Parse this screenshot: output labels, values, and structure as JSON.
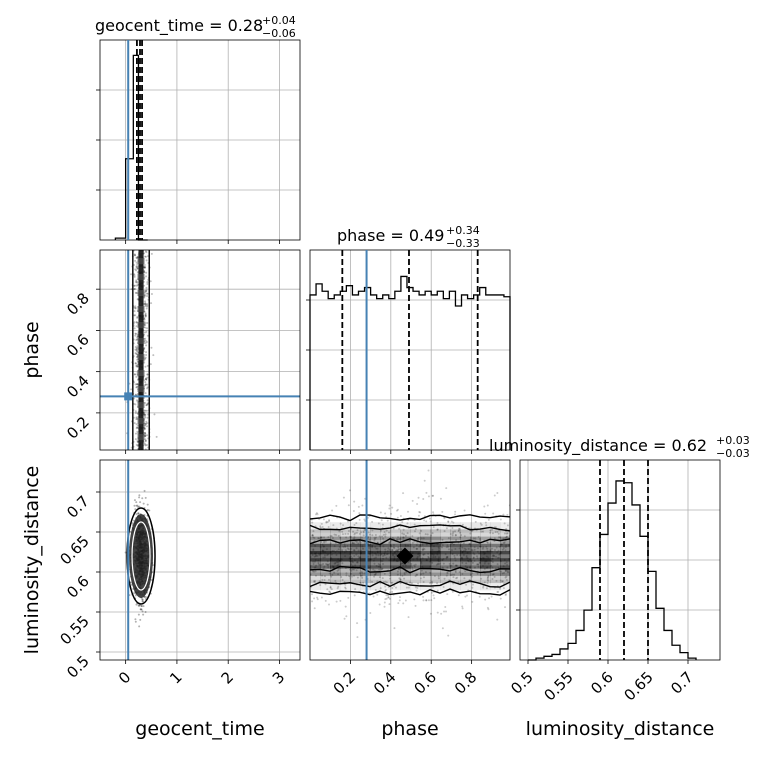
{
  "chart_data": {
    "type": "corner",
    "parameters": [
      "geocent_time",
      "phase",
      "luminosity_distance"
    ],
    "truth": {
      "geocent_time": 0.05,
      "phase": 0.28,
      "luminosity_distance": null
    },
    "truth_color": "#4682b4",
    "grid": true,
    "panels": [
      {
        "id": "geocent_time_hist",
        "kind": "histogram",
        "row": 0,
        "col": 0,
        "title": {
          "label": "geocent_time",
          "value": "0.28",
          "upper": "+0.04",
          "lower": "−0.06"
        },
        "xlim": [
          -0.5,
          3.4
        ],
        "bin_edges": [
          -0.2,
          0.0,
          0.15,
          0.25,
          0.43
        ],
        "counts": [
          0.01,
          0.44,
          1.0,
          0.0
        ],
        "quantiles": [
          0.22,
          0.28,
          0.32
        ],
        "xlabel": "",
        "xticks": [
          0,
          1,
          2,
          3
        ]
      },
      {
        "id": "phase_vs_geocent",
        "kind": "scatter2d",
        "row": 1,
        "col": 0,
        "xlim": [
          -0.5,
          3.4
        ],
        "ylim": [
          0.02,
          0.99
        ],
        "xticks": [
          0,
          1,
          2,
          3
        ],
        "yticks": [
          0.2,
          0.4,
          0.6,
          0.8
        ],
        "ylabel": "phase",
        "x_center": 0.3,
        "x_spread": 0.08
      },
      {
        "id": "phase_hist",
        "kind": "histogram",
        "row": 1,
        "col": 1,
        "title": {
          "label": "phase",
          "value": "0.49",
          "upper": "+0.34",
          "lower": "−0.33"
        },
        "xlim": [
          0.0,
          0.99
        ],
        "counts": [
          0.84,
          0.9,
          0.86,
          0.82,
          0.84,
          0.86,
          0.89,
          0.84,
          0.86,
          0.88,
          0.84,
          0.82,
          0.84,
          0.82,
          0.86,
          0.94,
          0.88,
          0.86,
          0.84,
          0.86,
          0.84,
          0.86,
          0.82,
          0.86,
          0.78,
          0.84,
          0.82,
          0.84,
          0.88,
          0.84,
          0.84,
          0.84,
          0.83
        ],
        "quantiles": [
          0.16,
          0.49,
          0.83
        ],
        "xticks": [
          0.2,
          0.4,
          0.6,
          0.8
        ]
      },
      {
        "id": "dist_vs_geocent",
        "kind": "scatter2d",
        "row": 2,
        "col": 0,
        "xlim": [
          -0.5,
          3.4
        ],
        "ylim": [
          0.49,
          0.74
        ],
        "xticks": [
          0,
          1,
          2,
          3
        ],
        "yticks": [
          0.5,
          0.55,
          0.6,
          0.65,
          0.7
        ],
        "xlabel": "geocent_time",
        "ylabel": "luminosity_distance",
        "x_center": 0.3,
        "y_center": 0.62
      },
      {
        "id": "dist_vs_phase",
        "kind": "scatter2d",
        "row": 2,
        "col": 1,
        "xlim": [
          0.0,
          0.99
        ],
        "ylim": [
          0.49,
          0.74
        ],
        "xticks": [
          0.2,
          0.4,
          0.6,
          0.8
        ],
        "xlabel": "phase",
        "y_center": 0.62
      },
      {
        "id": "dist_hist",
        "kind": "histogram",
        "row": 2,
        "col": 2,
        "title": {
          "label": "luminosity_distance",
          "value": "0.62",
          "upper": "+0.03",
          "lower": "−0.03"
        },
        "xlim": [
          0.49,
          0.74
        ],
        "bin_edges": [
          0.5,
          0.51,
          0.52,
          0.53,
          0.54,
          0.55,
          0.56,
          0.57,
          0.58,
          0.59,
          0.6,
          0.61,
          0.62,
          0.63,
          0.64,
          0.65,
          0.66,
          0.67,
          0.68,
          0.69,
          0.7,
          0.71
        ],
        "counts": [
          0.0,
          0.01,
          0.02,
          0.03,
          0.06,
          0.09,
          0.16,
          0.27,
          0.5,
          0.68,
          0.85,
          0.97,
          0.96,
          0.84,
          0.67,
          0.48,
          0.28,
          0.16,
          0.08,
          0.04,
          0.01
        ],
        "quantiles": [
          0.59,
          0.62,
          0.65
        ],
        "xlabel": "luminosity_distance",
        "xticks": [
          0.5,
          0.55,
          0.6,
          0.65,
          0.7
        ]
      }
    ]
  }
}
